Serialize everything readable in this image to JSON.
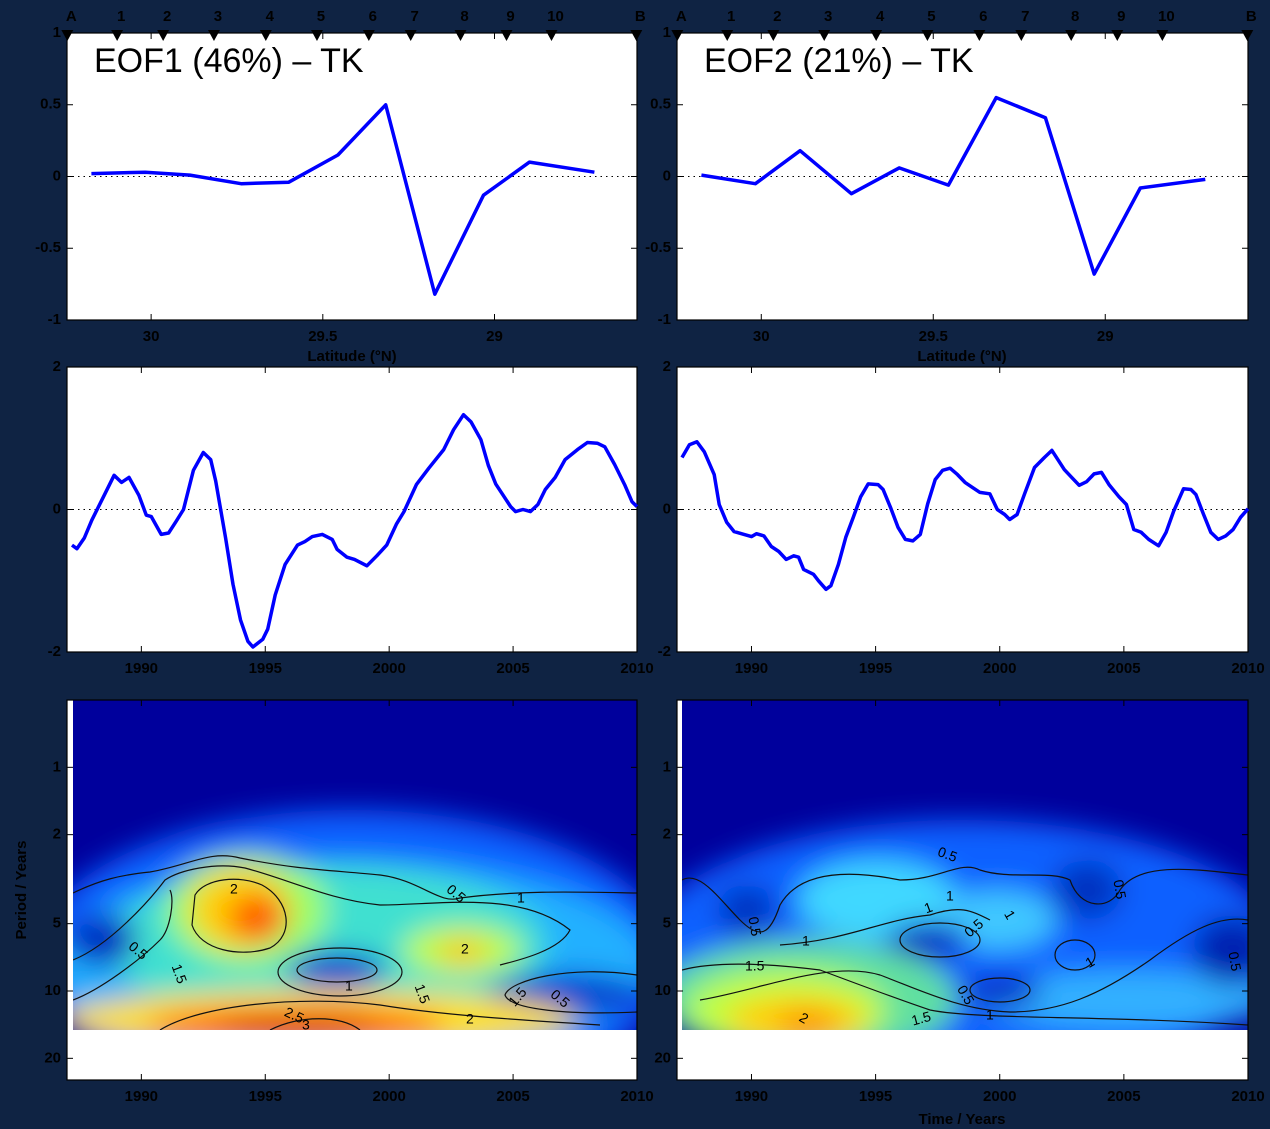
{
  "chart_data": [
    {
      "type": "line",
      "title": "EOF1 (46%) – TK",
      "x_label": "Latitude (°N)",
      "xlim": [
        30.245,
        28.585
      ],
      "xticks": [
        30,
        29.5,
        29
      ],
      "ylim": [
        -1,
        1
      ],
      "yticks": [
        -1,
        -0.5,
        0,
        0.5,
        1
      ],
      "reference_line": 0,
      "color": "#0000ff",
      "markers": {
        "labels": [
          "A",
          "1",
          "2",
          "3",
          "4",
          "5",
          "6",
          "7",
          "8",
          "9",
          "10",
          "B"
        ],
        "x": [
          30.244,
          30.099,
          29.965,
          29.817,
          29.666,
          29.517,
          29.366,
          29.244,
          29.099,
          28.965,
          28.834,
          28.587
        ]
      },
      "x": [
        30.174,
        30.017,
        29.887,
        29.738,
        29.599,
        29.456,
        29.317,
        29.174,
        29.032,
        28.898,
        28.709
      ],
      "values": [
        0.02,
        0.03,
        0.01,
        -0.05,
        -0.04,
        0.15,
        0.5,
        -0.82,
        -0.13,
        0.1,
        0.03
      ]
    },
    {
      "type": "line",
      "title": "EOF2 (21%) – TK",
      "x_label": "Latitude (°N)",
      "xlim": [
        30.245,
        28.585
      ],
      "xticks": [
        30,
        29.5,
        29
      ],
      "ylim": [
        -1,
        1
      ],
      "yticks": [
        -1,
        -0.5,
        0,
        0.5,
        1
      ],
      "reference_line": 0,
      "color": "#0000ff",
      "markers": {
        "labels": [
          "A",
          "1",
          "2",
          "3",
          "4",
          "5",
          "6",
          "7",
          "8",
          "9",
          "10",
          "B"
        ],
        "x": [
          30.244,
          30.099,
          29.965,
          29.817,
          29.666,
          29.517,
          29.366,
          29.244,
          29.099,
          28.965,
          28.834,
          28.587
        ]
      },
      "x": [
        30.174,
        30.017,
        29.887,
        29.738,
        29.599,
        29.456,
        29.317,
        29.174,
        29.032,
        28.898,
        28.709
      ],
      "values": [
        0.01,
        -0.05,
        0.18,
        -0.12,
        0.06,
        -0.06,
        0.55,
        0.41,
        -0.68,
        -0.08,
        -0.02
      ]
    },
    {
      "type": "line",
      "xlim": [
        1987,
        2010
      ],
      "xticks": [
        1990,
        1995,
        2000,
        2005,
        2010
      ],
      "ylim": [
        -2,
        2
      ],
      "yticks": [
        -2,
        0,
        2
      ],
      "reference_line": 0,
      "color": "#0000ff",
      "x": [
        1987.2,
        1987.4,
        1987.7,
        1988.0,
        1988.5,
        1988.9,
        1989.2,
        1989.5,
        1989.9,
        1990.2,
        1990.4,
        1990.8,
        1991.1,
        1991.4,
        1991.7,
        1992.1,
        1992.5,
        1992.8,
        1993.0,
        1993.4,
        1993.7,
        1994.0,
        1994.3,
        1994.5,
        1994.9,
        1995.1,
        1995.4,
        1995.8,
        1996.3,
        1996.6,
        1996.9,
        1997.3,
        1997.7,
        1997.9,
        1998.3,
        1998.6,
        1999.1,
        1999.5,
        1999.9,
        2000.3,
        2000.6,
        2001.1,
        2001.6,
        2002.2,
        2002.6,
        2003.0,
        2003.3,
        2003.7,
        2004.0,
        2004.3,
        2004.6,
        2004.9,
        2005.1,
        2005.4,
        2005.7,
        2006.0,
        2006.3,
        2006.7,
        2007.1,
        2007.6,
        2008.0,
        2008.4,
        2008.7,
        2009.1,
        2009.5,
        2009.8,
        2010.0
      ],
      "values": [
        -0.5,
        -0.55,
        -0.4,
        -0.15,
        0.2,
        0.48,
        0.38,
        0.45,
        0.2,
        -0.08,
        -0.1,
        -0.35,
        -0.33,
        -0.17,
        0,
        0.55,
        0.8,
        0.7,
        0.4,
        -0.4,
        -1.05,
        -1.55,
        -1.85,
        -1.93,
        -1.82,
        -1.68,
        -1.2,
        -0.77,
        -0.5,
        -0.45,
        -0.38,
        -0.35,
        -0.42,
        -0.56,
        -0.67,
        -0.7,
        -0.79,
        -0.65,
        -0.5,
        -0.2,
        -0.03,
        0.35,
        0.58,
        0.84,
        1.12,
        1.33,
        1.23,
        0.98,
        0.62,
        0.36,
        0.2,
        0.04,
        -0.03,
        0,
        -0.03,
        0.07,
        0.28,
        0.45,
        0.7,
        0.84,
        0.94,
        0.93,
        0.88,
        0.63,
        0.35,
        0.11,
        0.04
      ]
    },
    {
      "type": "line",
      "xlim": [
        1987,
        2010
      ],
      "xticks": [
        1990,
        1995,
        2000,
        2005,
        2010
      ],
      "ylim": [
        -2,
        2
      ],
      "yticks": [
        -2,
        0,
        2
      ],
      "reference_line": 0,
      "color": "#0000ff",
      "x": [
        1987.2,
        1987.5,
        1987.8,
        1988.1,
        1988.5,
        1988.7,
        1989.0,
        1989.3,
        1989.7,
        1990.0,
        1990.2,
        1990.5,
        1990.8,
        1991.1,
        1991.4,
        1991.7,
        1991.9,
        1992.1,
        1992.5,
        1992.7,
        1993.0,
        1993.2,
        1993.5,
        1993.8,
        1994.1,
        1994.4,
        1994.7,
        1995.1,
        1995.3,
        1995.6,
        1995.9,
        1996.2,
        1996.5,
        1996.8,
        1997.1,
        1997.4,
        1997.7,
        1998.0,
        1998.3,
        1998.6,
        1998.9,
        1999.2,
        1999.6,
        1999.9,
        2000.2,
        2000.4,
        2000.7,
        2001.0,
        2001.4,
        2001.8,
        2002.1,
        2002.4,
        2002.6,
        2002.9,
        2003.2,
        2003.5,
        2003.8,
        2004.1,
        2004.4,
        2004.8,
        2005.1,
        2005.4,
        2005.7,
        2006.0,
        2006.4,
        2006.7,
        2007.0,
        2007.4,
        2007.7,
        2007.9,
        2008.2,
        2008.5,
        2008.8,
        2009.1,
        2009.4,
        2009.7,
        2010.0
      ],
      "values": [
        0.73,
        0.91,
        0.95,
        0.81,
        0.49,
        0.07,
        -0.18,
        -0.31,
        -0.35,
        -0.38,
        -0.34,
        -0.37,
        -0.52,
        -0.59,
        -0.7,
        -0.65,
        -0.67,
        -0.84,
        -0.91,
        -1.0,
        -1.12,
        -1.07,
        -0.77,
        -0.39,
        -0.11,
        0.18,
        0.36,
        0.35,
        0.28,
        0.03,
        -0.25,
        -0.42,
        -0.44,
        -0.35,
        0.08,
        0.42,
        0.55,
        0.58,
        0.49,
        0.38,
        0.31,
        0.24,
        0.22,
        0,
        -0.07,
        -0.14,
        -0.07,
        0.22,
        0.59,
        0.73,
        0.83,
        0.67,
        0.56,
        0.45,
        0.34,
        0.39,
        0.5,
        0.52,
        0.35,
        0.18,
        0.07,
        -0.28,
        -0.32,
        -0.42,
        -0.51,
        -0.32,
        -0.03,
        0.29,
        0.28,
        0.21,
        -0.06,
        -0.32,
        -0.42,
        -0.37,
        -0.28,
        -0.11,
        0.01
      ]
    },
    {
      "type": "wavelet",
      "y_label": "Period / Years",
      "xlim": [
        1987,
        2010
      ],
      "xticks": [
        1990,
        1995,
        2000,
        2005,
        2010
      ],
      "ylim": [
        0.5,
        25
      ],
      "log_y": true,
      "yticks": [
        1,
        2,
        5,
        10,
        20
      ],
      "contour_labels": [
        0.5,
        1.5,
        2,
        0.5,
        1,
        2,
        1.5,
        2,
        2.5,
        3,
        1.5,
        0.5,
        1
      ]
    },
    {
      "type": "wavelet",
      "x_label": "Time / Years",
      "xlim": [
        1987,
        2010
      ],
      "xticks": [
        1990,
        1995,
        2000,
        2005,
        2010
      ],
      "ylim": [
        0.5,
        25
      ],
      "log_y": true,
      "yticks": [
        1,
        2,
        5,
        10,
        20
      ],
      "contour_labels": [
        0.5,
        0.5,
        0.5,
        1,
        1,
        0.5,
        1,
        1,
        1.5,
        0.5,
        1,
        1.5,
        1,
        2,
        0.5
      ]
    }
  ]
}
